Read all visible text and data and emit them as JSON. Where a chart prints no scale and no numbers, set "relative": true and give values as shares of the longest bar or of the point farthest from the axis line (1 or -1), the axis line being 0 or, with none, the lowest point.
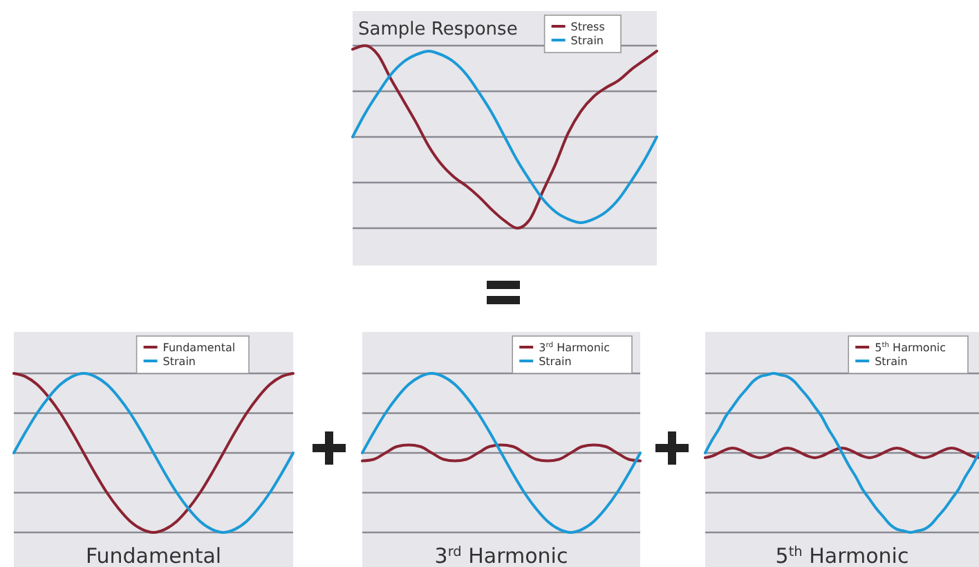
{
  "chart_data": [
    {
      "type": "line",
      "title": "Sample Response",
      "relative": true,
      "grid": true,
      "legend": "top right",
      "categories": [
        null,
        null,
        null,
        null,
        null,
        null,
        null,
        null,
        null,
        null,
        null,
        null,
        null,
        null,
        null,
        null,
        null,
        null,
        null,
        null,
        null,
        null,
        null,
        null,
        null
      ],
      "series": [
        {
          "name": "Stress",
          "color": "#8b2332",
          "values": [
            0.98,
            1.0,
            0.95,
            0.82,
            0.7,
            0.58,
            0.45,
            0.35,
            0.28,
            0.23,
            0.17,
            0.1,
            0.04,
            0,
            0.05,
            0.2,
            0.35,
            0.52,
            0.64,
            0.72,
            0.77,
            0.81,
            0.87,
            0.92,
            0.97
          ]
        },
        {
          "name": "Strain",
          "color": "#1b9ad6",
          "values": [
            0.5,
            0.63,
            0.74,
            0.84,
            0.91,
            0.95,
            0.97,
            0.95,
            0.91,
            0.84,
            0.74,
            0.63,
            0.5,
            0.37,
            0.26,
            0.16,
            0.09,
            0.05,
            0.03,
            0.05,
            0.09,
            0.16,
            0.26,
            0.37,
            0.5
          ]
        }
      ]
    },
    {
      "type": "line",
      "xlabel": "Fundamental",
      "relative": true,
      "grid": true,
      "legend": "top right",
      "categories": [
        null,
        null,
        null,
        null,
        null,
        null,
        null,
        null,
        null,
        null,
        null,
        null,
        null,
        null,
        null,
        null,
        null,
        null,
        null,
        null,
        null,
        null,
        null,
        null,
        null
      ],
      "series": [
        {
          "name": "Fundamental",
          "color": "#8b2332",
          "values": [
            1,
            0.98,
            0.93,
            0.85,
            0.75,
            0.63,
            0.5,
            0.37,
            0.25,
            0.15,
            0.07,
            0.02,
            0,
            0.02,
            0.07,
            0.15,
            0.25,
            0.37,
            0.5,
            0.63,
            0.75,
            0.85,
            0.93,
            0.98,
            1
          ]
        },
        {
          "name": "Strain",
          "color": "#1b9ad6",
          "values": [
            0.5,
            0.63,
            0.75,
            0.85,
            0.93,
            0.98,
            1,
            0.98,
            0.93,
            0.85,
            0.75,
            0.63,
            0.5,
            0.37,
            0.25,
            0.15,
            0.07,
            0.02,
            0,
            0.02,
            0.07,
            0.15,
            0.25,
            0.37,
            0.5
          ]
        }
      ]
    },
    {
      "type": "line",
      "xlabel": "3$^{rd}$ Harmonic",
      "relative": true,
      "grid": true,
      "legend": "top right",
      "categories": [
        null,
        null,
        null,
        null,
        null,
        null,
        null,
        null,
        null,
        null,
        null,
        null,
        null,
        null,
        null,
        null,
        null,
        null,
        null,
        null,
        null,
        null,
        null,
        null,
        null
      ],
      "series": [
        {
          "name": "3$^{rd}$ Harmonic",
          "color": "#8b2332",
          "values": [
            0.45,
            0.46,
            0.5,
            0.54,
            0.55,
            0.54,
            0.5,
            0.46,
            0.45,
            0.46,
            0.5,
            0.54,
            0.55,
            0.54,
            0.5,
            0.46,
            0.45,
            0.46,
            0.5,
            0.54,
            0.55,
            0.54,
            0.5,
            0.46,
            0.45
          ]
        },
        {
          "name": "Strain",
          "color": "#1b9ad6",
          "values": [
            0.5,
            0.63,
            0.75,
            0.85,
            0.93,
            0.98,
            1,
            0.98,
            0.93,
            0.85,
            0.75,
            0.63,
            0.5,
            0.37,
            0.25,
            0.15,
            0.07,
            0.02,
            0,
            0.02,
            0.07,
            0.15,
            0.25,
            0.37,
            0.5
          ]
        }
      ]
    },
    {
      "type": "line",
      "xlabel": "5$^{th}$ Harmonic",
      "relative": true,
      "grid": true,
      "legend": "top right",
      "categories": [
        null,
        null,
        null,
        null,
        null,
        null,
        null,
        null,
        null,
        null,
        null,
        null,
        null,
        null,
        null,
        null,
        null,
        null,
        null,
        null,
        null,
        null,
        null,
        null,
        null,
        null,
        null,
        null,
        null,
        null,
        null,
        null,
        null,
        null,
        null,
        null,
        null,
        null,
        null,
        null,
        null
      ],
      "series": [
        {
          "name": "5$^{th}$ Harmonic",
          "color": "#8b2332",
          "values": [
            0.47,
            0.48,
            0.5,
            0.52,
            0.53,
            0.52,
            0.5,
            0.48,
            0.47,
            0.48,
            0.5,
            0.52,
            0.53,
            0.52,
            0.5,
            0.48,
            0.47,
            0.48,
            0.5,
            0.52,
            0.53,
            0.52,
            0.5,
            0.48,
            0.47,
            0.48,
            0.5,
            0.52,
            0.53,
            0.52,
            0.5,
            0.48,
            0.47,
            0.48,
            0.5,
            0.52,
            0.53,
            0.52,
            0.5,
            0.48,
            0.47
          ]
        },
        {
          "name": "Strain",
          "color": "#1b9ad6",
          "values": [
            0.5,
            0.58,
            0.65,
            0.73,
            0.79,
            0.85,
            0.9,
            0.95,
            0.98,
            0.99,
            1,
            0.99,
            0.98,
            0.95,
            0.9,
            0.85,
            0.79,
            0.73,
            0.65,
            0.58,
            0.5,
            0.42,
            0.35,
            0.27,
            0.21,
            0.15,
            0.1,
            0.05,
            0.02,
            0.01,
            0,
            0.01,
            0.02,
            0.05,
            0.1,
            0.15,
            0.21,
            0.27,
            0.35,
            0.42,
            0.5
          ]
        }
      ]
    }
  ]
}
